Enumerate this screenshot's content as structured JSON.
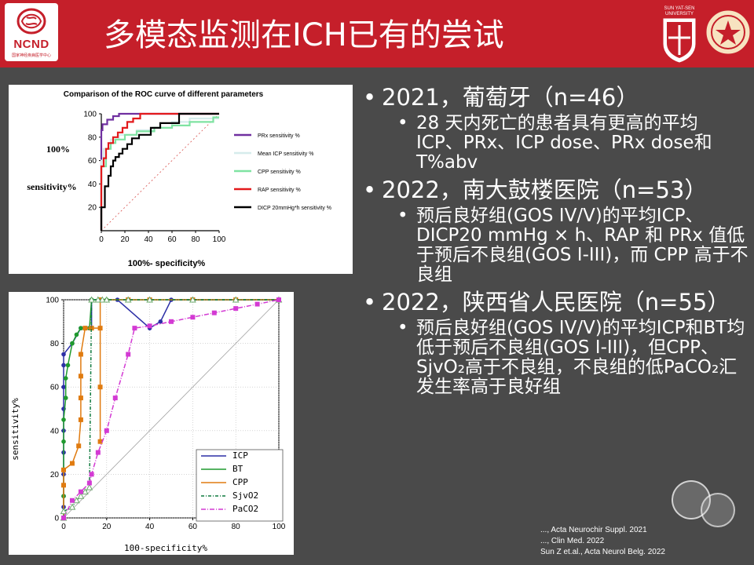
{
  "header": {
    "title": "多模态监测在ICH已有的尝试",
    "logo_text": "NCND",
    "logo_subtext": "国家神经疾病医学中心",
    "crest_text": "SUN YAT-SEN UNIVERSITY",
    "colors": {
      "banner": "#c51f2a",
      "text": "#ffffff"
    }
  },
  "bullets": [
    {
      "text": "2021，葡萄牙（n=46）",
      "subs": [
        "28 天内死亡的患者具有更高的平均 ICP、PRx、ICP dose、PRx dose和 T%abv"
      ]
    },
    {
      "text": "2022，南大鼓楼医院（n=53）",
      "subs": [
        "预后良好组(GOS IV/V)的平均ICP、DICP20 mmHg × h、RAP 和 PRx 值低于预后不良组(GOS I-III)，而 CPP 高于不良组"
      ]
    },
    {
      "text": "2022，陕西省人民医院（n=55）",
      "subs": [
        "预后良好组(GOS IV/V)的平均ICP和BT均低于预后不良组(GOS I-III)，但CPP、SjvO₂高于不良组，不良组的低PaCO₂汇发生率高于良好组"
      ]
    }
  ],
  "citations": [
    "..., Acta Neurochir Suppl. 2021",
    "..., Clin Med. 2022",
    "Sun Z et.al., Acta Neurol Belg. 2022"
  ],
  "chart_data": [
    {
      "type": "line",
      "title": "Comparison of the ROC curve of different parameters",
      "ylabel_lines": [
        "100%",
        "sensitivity%"
      ],
      "xlabel": "100%- specificity%",
      "x_ticks": [
        "0",
        "20",
        "40",
        "60",
        "80",
        "100"
      ],
      "y_ticks": [
        "20",
        "40",
        "60",
        "80",
        "100"
      ],
      "xlim": [
        0,
        100
      ],
      "ylim": [
        0,
        100
      ],
      "reference_line": true,
      "series": [
        {
          "name": "PRx sensitivity  %",
          "color": "#7030a0",
          "x": [
            0,
            0,
            1,
            1,
            5,
            5,
            10,
            10,
            15,
            15,
            100
          ],
          "y": [
            0,
            86,
            86,
            91,
            91,
            95,
            95,
            98,
            98,
            100,
            100
          ]
        },
        {
          "name": "Mean ICP sensitivity %",
          "color": "#d6ecec",
          "x": [
            0,
            0,
            2,
            2,
            8,
            8,
            15,
            15,
            30,
            30,
            45,
            45,
            60,
            60,
            75,
            75,
            100
          ],
          "y": [
            0,
            60,
            60,
            70,
            70,
            78,
            78,
            82,
            82,
            86,
            86,
            88,
            88,
            93,
            93,
            96,
            96
          ]
        },
        {
          "name": "CPP sensitivity %",
          "color": "#7fe3a2",
          "x": [
            0,
            0,
            4,
            4,
            8,
            8,
            12,
            12,
            20,
            20,
            30,
            30,
            45,
            45,
            60,
            60,
            75,
            75,
            95,
            95,
            100
          ],
          "y": [
            0,
            55,
            55,
            70,
            70,
            75,
            75,
            78,
            78,
            82,
            82,
            85,
            85,
            88,
            88,
            90,
            90,
            93,
            93,
            97,
            97
          ]
        },
        {
          "name": "RAP sensitivity %",
          "color": "#e31a1c",
          "x": [
            0,
            0,
            2,
            2,
            4,
            4,
            6,
            6,
            10,
            10,
            14,
            14,
            18,
            18,
            22,
            22,
            27,
            27,
            33,
            33,
            100
          ],
          "y": [
            0,
            55,
            55,
            62,
            62,
            70,
            70,
            75,
            75,
            80,
            80,
            84,
            84,
            88,
            88,
            93,
            93,
            96,
            96,
            100,
            100
          ]
        },
        {
          "name": "DICP  20mmHg*h sensitivity %",
          "color": "#000000",
          "x": [
            0,
            0,
            3,
            3,
            6,
            6,
            8,
            8,
            10,
            10,
            12,
            12,
            15,
            15,
            18,
            18,
            22,
            22,
            26,
            26,
            32,
            32,
            42,
            42,
            50,
            50,
            66,
            66,
            100
          ],
          "y": [
            0,
            20,
            20,
            38,
            38,
            47,
            47,
            55,
            55,
            60,
            60,
            63,
            63,
            66,
            66,
            70,
            70,
            74,
            74,
            79,
            79,
            82,
            82,
            88,
            88,
            92,
            92,
            100,
            100
          ]
        }
      ]
    },
    {
      "type": "line",
      "ylabel": "sensitivity%",
      "xlabel": "100-specificity%",
      "x_ticks": [
        "0",
        "20",
        "40",
        "60",
        "80",
        "100"
      ],
      "y_ticks": [
        "0",
        "20",
        "40",
        "60",
        "80",
        "100"
      ],
      "xlim": [
        0,
        100
      ],
      "ylim": [
        0,
        100
      ],
      "reference_line": true,
      "series": [
        {
          "name": "ICP",
          "color": "#2c2fa6",
          "marker": "dot",
          "x": [
            0,
            0,
            0,
            0,
            0,
            0,
            0,
            0,
            0,
            0,
            4,
            8,
            12,
            13,
            13,
            25,
            40,
            45,
            50,
            60,
            80,
            100
          ],
          "y": [
            0,
            5,
            10,
            20,
            30,
            40,
            50,
            60,
            70,
            75,
            80,
            87,
            87,
            87,
            100,
            100,
            87,
            90,
            100,
            100,
            100,
            100
          ]
        },
        {
          "name": "BT",
          "color": "#1f9a2e",
          "marker": "dot",
          "x": [
            0,
            0,
            0,
            0,
            0,
            1,
            1,
            2,
            4,
            6,
            8,
            10,
            12,
            13,
            13,
            20,
            30,
            40,
            60,
            80,
            100
          ],
          "y": [
            0,
            10,
            22,
            35,
            45,
            55,
            64,
            70,
            80,
            84,
            87,
            87,
            87,
            100,
            100,
            100,
            100,
            100,
            100,
            100,
            100
          ]
        },
        {
          "name": "CPP",
          "color": "#e07b10",
          "marker": "square",
          "x": [
            0,
            0,
            0,
            4,
            7,
            8,
            8,
            8,
            8,
            10,
            13,
            17,
            17,
            17,
            17,
            30,
            40,
            60,
            80,
            100
          ],
          "y": [
            0,
            15,
            22,
            25,
            33,
            45,
            55,
            65,
            75,
            87,
            87,
            87,
            60,
            35,
            100,
            100,
            100,
            100,
            100,
            100
          ]
        },
        {
          "name": "SjvO2",
          "color": "#0f7a3e",
          "marker": "triangle",
          "dash": "4 2 1 2",
          "x": [
            0,
            0,
            4,
            6,
            8,
            10,
            12,
            13,
            16,
            18,
            20,
            30,
            40,
            60,
            80,
            100
          ],
          "y": [
            0,
            3,
            5,
            8,
            10,
            12,
            14,
            100,
            100,
            100,
            100,
            100,
            100,
            100,
            100,
            100
          ]
        },
        {
          "name": "PaCO2",
          "color": "#d33ad3",
          "marker": "square",
          "dash": "6 2 1 2",
          "x": [
            0,
            4,
            8,
            12,
            13,
            16,
            20,
            24,
            30,
            33,
            40,
            50,
            60,
            70,
            80,
            90,
            100
          ],
          "y": [
            0,
            8,
            12,
            16,
            20,
            30,
            40,
            55,
            75,
            87,
            88,
            90,
            92,
            94,
            96,
            98,
            100
          ]
        }
      ]
    }
  ]
}
